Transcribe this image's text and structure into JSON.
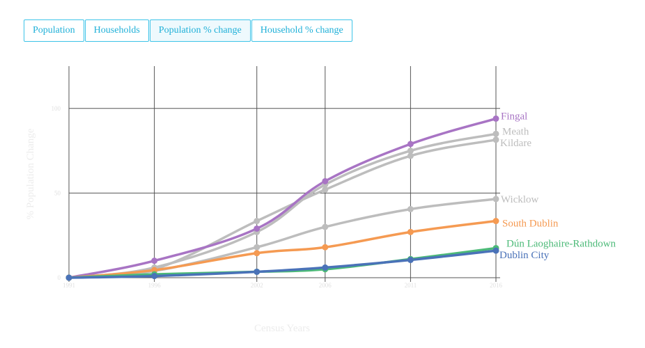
{
  "tabs": [
    {
      "label": "Population",
      "active": false
    },
    {
      "label": "Households",
      "active": false
    },
    {
      "label": "Population % change",
      "active": true
    },
    {
      "label": "Household % change",
      "active": false
    }
  ],
  "chart_data": {
    "type": "line",
    "title": "",
    "xlabel": "Census Years",
    "ylabel": "% Population Change",
    "x": [
      1991,
      1996,
      2002,
      2006,
      2011,
      2016
    ],
    "x_tick_labels": [
      "1991",
      "1996",
      "2002",
      "2006",
      "2011",
      "2016"
    ],
    "y_ticks": [
      0,
      50,
      100
    ],
    "y_tick_labels": [
      "0",
      "50",
      "100"
    ],
    "ylim": [
      0,
      125
    ],
    "grid": true,
    "legend": "labels at line ends (right)",
    "series": [
      {
        "name": "Fingal",
        "color": "#a874c4",
        "values": [
          0,
          10,
          29,
          57,
          79,
          94
        ]
      },
      {
        "name": "Meath",
        "color": "#bdbdbd",
        "values": [
          0,
          6,
          27,
          55,
          75,
          85
        ]
      },
      {
        "name": "Kildare",
        "color": "#bdbdbd",
        "values": [
          0,
          5,
          33.5,
          52,
          72,
          81.5
        ]
      },
      {
        "name": "Wicklow",
        "color": "#bdbdbd",
        "values": [
          0,
          4,
          18,
          30,
          40.5,
          46.5
        ]
      },
      {
        "name": "South Dublin",
        "color": "#f59a52",
        "values": [
          0,
          4.5,
          14.5,
          18,
          27,
          33.5
        ]
      },
      {
        "name": "Dún Laoghaire-Rathdown",
        "color": "#4cba78",
        "values": [
          0,
          2,
          3.5,
          5,
          11,
          17.5
        ]
      },
      {
        "name": "Dublin City",
        "color": "#4a72b8",
        "values": [
          0,
          1,
          3.5,
          6,
          10.5,
          16
        ]
      }
    ]
  }
}
